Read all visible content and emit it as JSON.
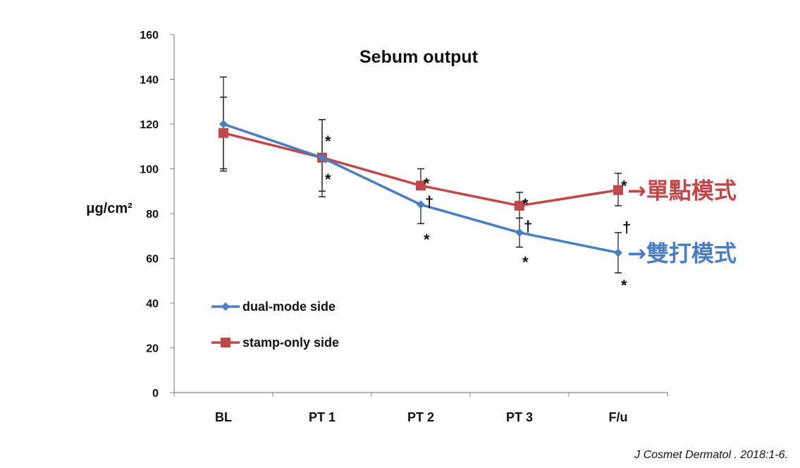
{
  "chart_data": {
    "type": "line",
    "title": "Sebum output",
    "ylabel": "μg/cm²",
    "xlabel": "",
    "categories": [
      "BL",
      "PT 1",
      "PT 2",
      "PT 3",
      "F/u"
    ],
    "ylim": [
      0,
      160
    ],
    "yticks": [
      0,
      20,
      40,
      60,
      80,
      100,
      120,
      140,
      160
    ],
    "ytick_labels": [
      "0",
      "20",
      "40",
      "60",
      "80",
      "100",
      "120",
      "140",
      "160"
    ],
    "grid": false,
    "legend_placement": "bottom-left",
    "series": [
      {
        "name": "dual-mode side",
        "color": "#4a7ebf",
        "marker": "diamond",
        "values": [
          120,
          105,
          84,
          71.5,
          62.5
        ],
        "error_high": [
          141,
          122,
          null,
          78,
          71.5
        ],
        "error_low": [
          99,
          87.5,
          75.5,
          65,
          53.5
        ]
      },
      {
        "name": "stamp-only side",
        "color": "#c0474a",
        "marker": "square",
        "values": [
          116,
          105,
          92.5,
          83.5,
          90.5
        ],
        "error_high": [
          132,
          122,
          100,
          89.5,
          98
        ],
        "error_low": [
          100,
          90,
          null,
          78,
          83.5
        ]
      }
    ],
    "annotations": [
      {
        "text": "*",
        "category": "PT 1",
        "y": 115
      },
      {
        "text": "*",
        "category": "PT 1",
        "y": 98
      },
      {
        "text": "*",
        "category": "PT 2",
        "y": 96
      },
      {
        "text": "†",
        "category": "PT 2",
        "y": 85.5
      },
      {
        "text": "*",
        "category": "PT 2",
        "y": 71
      },
      {
        "text": "*",
        "category": "PT 3",
        "y": 87
      },
      {
        "text": "†",
        "category": "PT 3",
        "y": 74.5
      },
      {
        "text": "*",
        "category": "PT 3",
        "y": 61
      },
      {
        "text": "*",
        "category": "F/u",
        "y": 95
      },
      {
        "text": "†",
        "category": "F/u",
        "y": 74
      },
      {
        "text": "*",
        "category": "F/u",
        "y": 50.5
      }
    ],
    "series_callouts": [
      {
        "text": "→單點模式",
        "color": "#c0474a",
        "series": "stamp-only side"
      },
      {
        "text": "→雙打模式",
        "color": "#4a7ebf",
        "series": "dual-mode side"
      }
    ]
  },
  "citation": "J Cosmet Dermatol . 2018:1-6."
}
